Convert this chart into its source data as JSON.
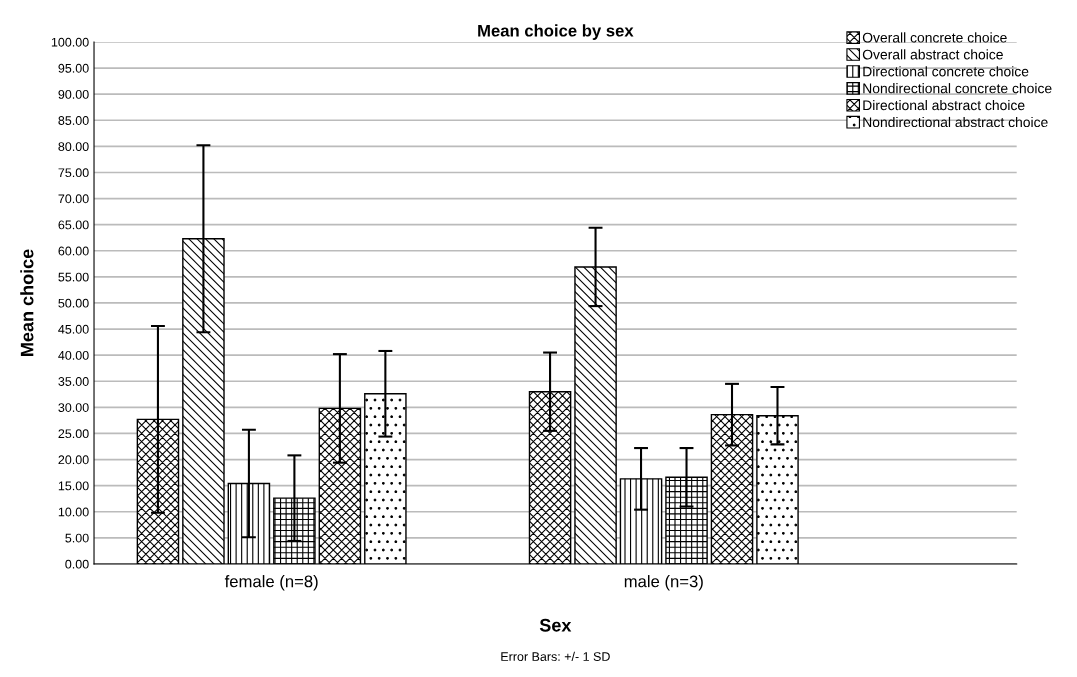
{
  "chart_data": {
    "type": "bar",
    "title": "Mean choice by sex",
    "xlabel": "Sex",
    "ylabel": "Mean choice",
    "categories": [
      "female (n=8)",
      "male (n=3)"
    ],
    "series": [
      {
        "name": "Overall concrete choice",
        "color": "#000000",
        "values": [
          27.7,
          33.0
        ],
        "errors": [
          17.9,
          7.5
        ]
      },
      {
        "name": "Overall abstract choice",
        "color": "#000000",
        "values": [
          62.3,
          56.9
        ],
        "errors": [
          17.9,
          7.5
        ]
      },
      {
        "name": "Directional concrete choice",
        "color": "#000000",
        "values": [
          15.4,
          16.3
        ],
        "errors": [
          10.3,
          5.9
        ]
      },
      {
        "name": "Nondirectional concrete choice",
        "color": "#000000",
        "values": [
          12.6,
          16.6
        ],
        "errors": [
          8.2,
          5.6
        ]
      },
      {
        "name": "Directional abstract choice",
        "color": "#000000",
        "values": [
          29.8,
          28.6
        ],
        "errors": [
          10.4,
          5.9
        ]
      },
      {
        "name": "Nondirectional abstract choice",
        "color": "#000000",
        "values": [
          32.6,
          28.4
        ],
        "errors": [
          8.2,
          5.5
        ]
      }
    ],
    "ylim": [
      0,
      100
    ],
    "yticks": [
      {
        "value": 0,
        "label": "0.00"
      },
      {
        "value": 5,
        "label": "5.00"
      },
      {
        "value": 10,
        "label": "10.00"
      },
      {
        "value": 15,
        "label": "15.00"
      },
      {
        "value": 20,
        "label": "20.00"
      },
      {
        "value": 25,
        "label": "25.00"
      },
      {
        "value": 30,
        "label": "30.00"
      },
      {
        "value": 35,
        "label": "35.00"
      },
      {
        "value": 40,
        "label": "40.00"
      },
      {
        "value": 45,
        "label": "45.00"
      },
      {
        "value": 50,
        "label": "50.00"
      },
      {
        "value": 55,
        "label": "55.00"
      },
      {
        "value": 60,
        "label": "60.00"
      },
      {
        "value": 65,
        "label": "65.00"
      },
      {
        "value": 70,
        "label": "70.00"
      },
      {
        "value": 75,
        "label": "75.00"
      },
      {
        "value": 80,
        "label": "80.00"
      },
      {
        "value": 85,
        "label": "85.00"
      },
      {
        "value": 90,
        "label": "90.00"
      },
      {
        "value": 95,
        "label": "95.00"
      },
      {
        "value": 100,
        "label": "100.00"
      }
    ],
    "grid": "y",
    "legend": "top right",
    "annotations": [
      "Error Bars: +/- 1 SD"
    ]
  }
}
